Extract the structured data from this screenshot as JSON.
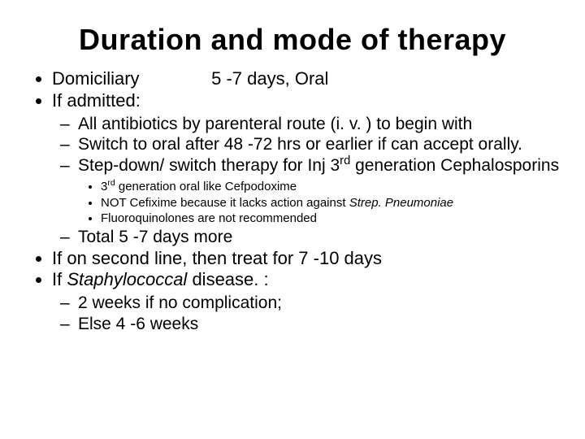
{
  "colors": {
    "background": "#ffffff",
    "text": "#000000"
  },
  "typography": {
    "font_family": "Arial",
    "title_fontsize_pt": 27,
    "body_fontsize_pt": 16,
    "sub_fontsize_pt": 11,
    "title_weight": "bold"
  },
  "title": "Duration and mode  of therapy",
  "domiciliary": {
    "label": "Domiciliary",
    "value": "5 -7 days, Oral"
  },
  "if_admitted": {
    "label": "If admitted:",
    "sub": {
      "a": "All antibiotics by parenteral route (i. v. )  to begin with",
      "b": "Switch to oral after 48 -72 hrs or earlier if can accept orally.",
      "c_pre": "Step-down/ switch therapy for Inj 3",
      "c_sup": "rd",
      "c_post": " generation Cephalosporins",
      "c_items": {
        "i_pre": "3",
        "i_sup": "rd",
        "i_post": " generation oral like Cefpodoxime",
        "ii_pre": "NOT Cefixime because it lacks action against ",
        "ii_em": "Strep. Pneumoniae",
        "iii": "Fluoroquinolones  are not recommended"
      },
      "d": "Total 5 -7 days more"
    }
  },
  "second_line": "If on second line, then treat  for 7 -10 days",
  "staph": {
    "pre": "If ",
    "em": "Staphylococcal",
    "post": " disease. :",
    "sub": {
      "a": "2 weeks if no complication;",
      "b": "Else 4 -6 weeks"
    }
  }
}
